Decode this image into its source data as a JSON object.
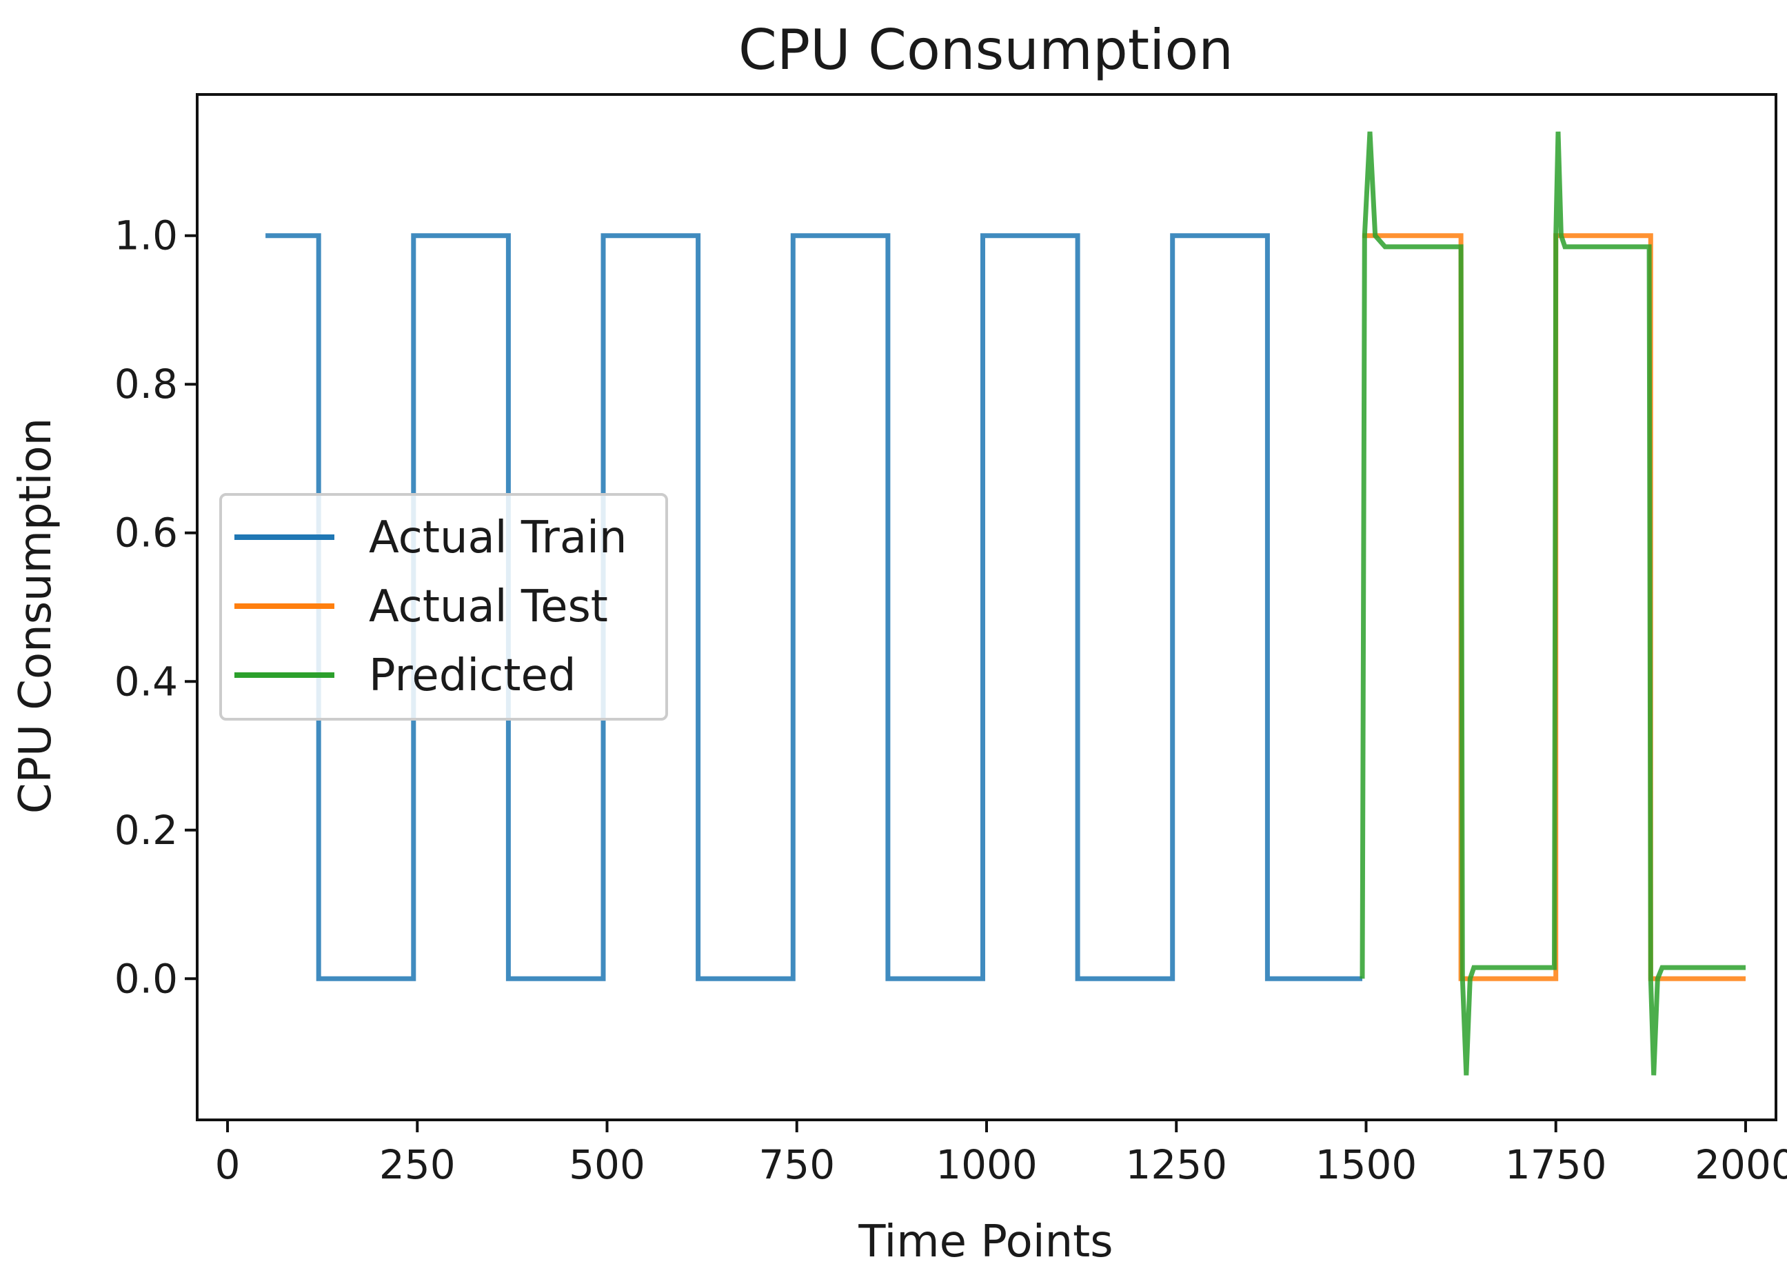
{
  "chart_data": {
    "type": "line",
    "title": "CPU Consumption",
    "xlabel": "Time Points",
    "ylabel": "CPU Consumption",
    "xlim": [
      -40,
      2040
    ],
    "ylim": [
      -0.19,
      1.19
    ],
    "xticks": [
      0,
      250,
      500,
      750,
      1000,
      1250,
      1500,
      1750,
      2000
    ],
    "xtick_labels": [
      "0",
      "250",
      "500",
      "750",
      "1000",
      "1250",
      "1500",
      "1750",
      "2000"
    ],
    "yticks": [
      0.0,
      0.2,
      0.4,
      0.6,
      0.8,
      1.0
    ],
    "ytick_labels": [
      "0.0",
      "0.2",
      "0.4",
      "0.6",
      "0.8",
      "1.0"
    ],
    "grid": false,
    "legend_position": "center-left",
    "series": [
      {
        "name": "Actual Train",
        "color": "#1f77b4",
        "x": [
          50,
          120,
          120,
          245,
          245,
          370,
          370,
          495,
          495,
          620,
          620,
          745,
          745,
          870,
          870,
          995,
          995,
          1120,
          1120,
          1245,
          1245,
          1370,
          1370,
          1495
        ],
        "y": [
          1,
          1,
          0,
          0,
          1,
          1,
          0,
          0,
          1,
          1,
          0,
          0,
          1,
          1,
          0,
          0,
          1,
          1,
          0,
          0,
          1,
          1,
          0,
          0
        ]
      },
      {
        "name": "Actual Test",
        "color": "#ff7f0e",
        "x": [
          1495,
          1625,
          1625,
          1750,
          1750,
          1875,
          1875,
          2000
        ],
        "y": [
          1,
          1,
          0,
          0,
          1,
          1,
          0,
          0
        ]
      },
      {
        "name": "Predicted",
        "color": "#2ca02c",
        "x": [
          1495,
          1498,
          1505,
          1512,
          1525,
          1625,
          1627,
          1632,
          1637,
          1642,
          1650,
          1748,
          1750,
          1753,
          1757,
          1762,
          1775,
          1873,
          1875,
          1879,
          1884,
          1890,
          1900,
          2000
        ],
        "y": [
          0.0,
          1.0,
          1.14,
          1.0,
          0.985,
          0.985,
          0.0,
          -0.13,
          0.0,
          0.015,
          0.015,
          0.015,
          1.0,
          1.14,
          1.0,
          0.985,
          0.985,
          0.985,
          0.0,
          -0.13,
          0.0,
          0.015,
          0.015,
          0.015
        ]
      }
    ]
  }
}
